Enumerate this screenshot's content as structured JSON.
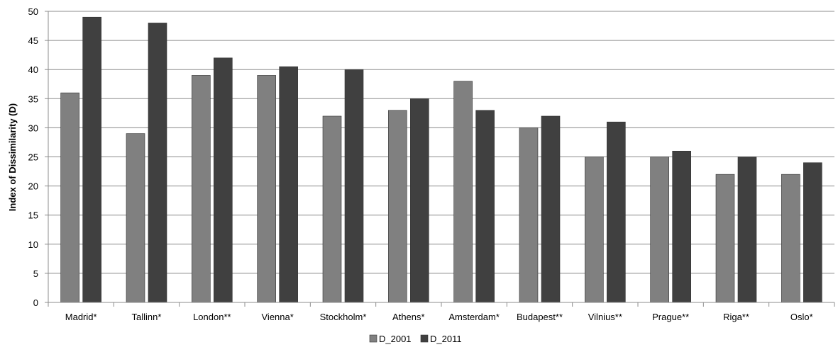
{
  "chart_data": {
    "type": "bar",
    "title": "",
    "xlabel": "",
    "ylabel": "Index of Dissimilarity (D)",
    "ylim": [
      0,
      50
    ],
    "y_ticks": [
      0,
      5,
      10,
      15,
      20,
      25,
      30,
      35,
      40,
      45,
      50
    ],
    "grid": true,
    "legend_position": "bottom",
    "categories": [
      "Madrid*",
      "Tallinn*",
      "London**",
      "Vienna*",
      "Stockholm*",
      "Athens*",
      "Amsterdam*",
      "Budapest**",
      "Vilnius**",
      "Prague**",
      "Riga**",
      "Oslo*"
    ],
    "series": [
      {
        "name": "D_2001",
        "color": "#808080",
        "values": [
          36,
          29,
          39,
          39,
          32,
          33,
          38,
          30,
          25,
          25,
          22,
          22
        ]
      },
      {
        "name": "D_2011",
        "color": "#404040",
        "values": [
          49,
          48,
          42,
          40.5,
          40,
          35,
          33,
          32,
          31,
          26,
          25,
          24
        ]
      }
    ]
  }
}
